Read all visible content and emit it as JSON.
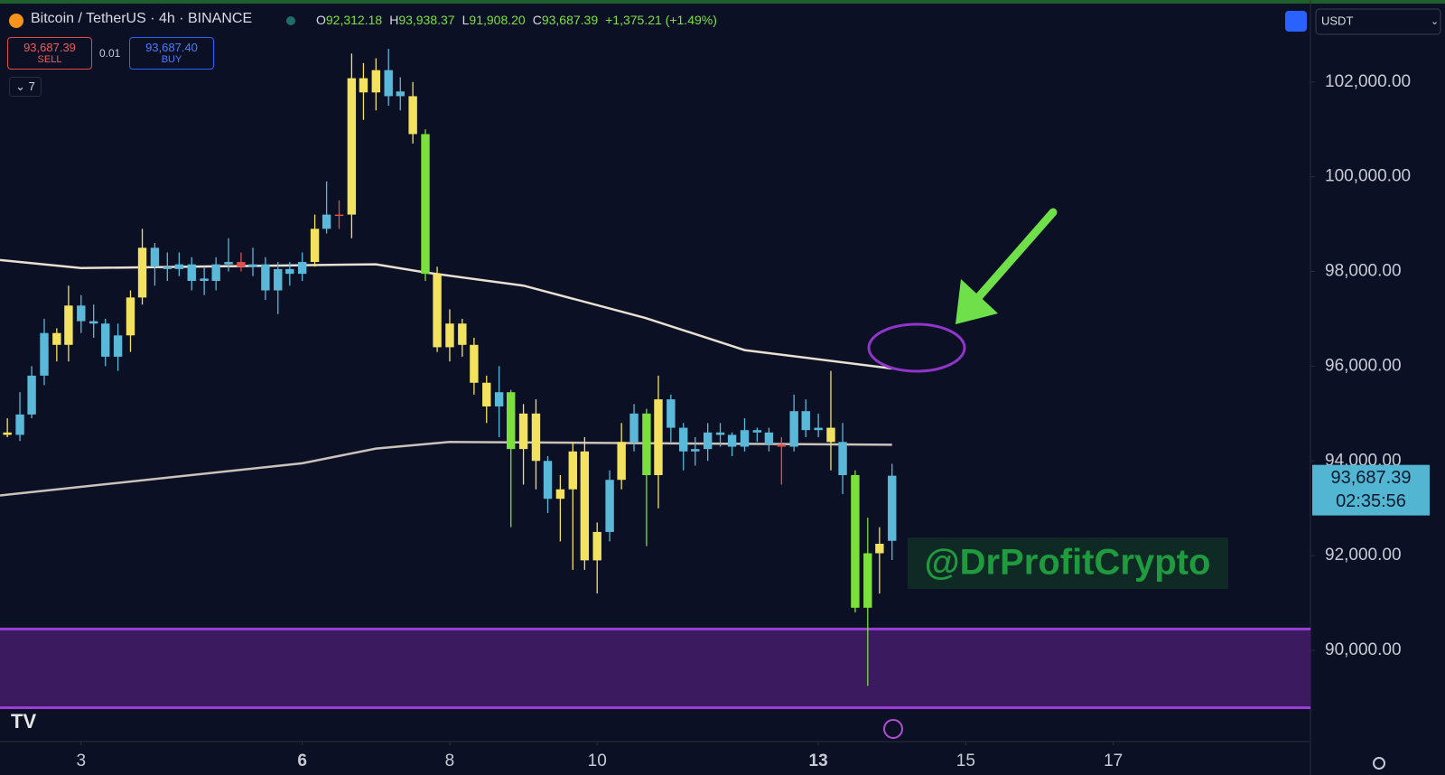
{
  "ui": {
    "header": {
      "symbol": "Bitcoin / TetherUS · 4h · BINANCE",
      "ohlc": [
        {
          "label": "O",
          "value": "92,312.18"
        },
        {
          "label": "H",
          "value": "93,938.37"
        },
        {
          "label": "L",
          "value": "91,908.20"
        },
        {
          "label": "C",
          "value": "93,687.39"
        }
      ],
      "change": "+1,375.21 (+1.49%)"
    },
    "sell": {
      "price": "93,687.39",
      "label": "SELL"
    },
    "spread": "0.01",
    "buy": {
      "price": "93,687.40",
      "label": "BUY"
    },
    "indicators": "7",
    "currency": "USDT",
    "price_badge": {
      "price": "93,687.39",
      "countdown": "02:35:56"
    }
  },
  "chart_data": {
    "type": "candlestick",
    "x": [
      2,
      2.17,
      2.33,
      2.5,
      2.67,
      2.83,
      3,
      3.17,
      3.33,
      3.5,
      3.67,
      3.83,
      4,
      4.17,
      4.33,
      4.5,
      4.67,
      4.83,
      5,
      5.17,
      5.33,
      5.5,
      5.67,
      5.83,
      6,
      6.17,
      6.33,
      6.5,
      6.67,
      6.83,
      7,
      7.17,
      7.33,
      7.5,
      7.67,
      7.83,
      8,
      8.17,
      8.33,
      8.5,
      8.67,
      8.83,
      9,
      9.17,
      9.33,
      9.5,
      9.67,
      9.83,
      10,
      10.17,
      10.33,
      10.5,
      10.67,
      10.83,
      11,
      11.17,
      11.33,
      11.5,
      11.67,
      11.83,
      12,
      12.17,
      12.33,
      12.5,
      12.67,
      12.83,
      13,
      13.17,
      13.33,
      13.5,
      13.67,
      13.83,
      14
    ],
    "open": [
      94550,
      94550,
      94980,
      95800,
      96700,
      96450,
      97280,
      96950,
      96900,
      96200,
      96650,
      97450,
      98500,
      98100,
      98050,
      98150,
      97800,
      97800,
      98150,
      98200,
      98100,
      98150,
      97600,
      98050,
      97950,
      98200,
      98900,
      99200,
      99200,
      102080,
      101780,
      102250,
      101700,
      101700,
      100900,
      97950,
      96400,
      96900,
      96450,
      95650,
      95150,
      95450,
      94250,
      95000,
      94000,
      93200,
      93400,
      94200,
      91900,
      92500,
      93600,
      94400,
      95000,
      93700,
      95300,
      94700,
      94200,
      94250,
      94600,
      94550,
      94300,
      94650,
      94600,
      94350,
      94300,
      95050,
      94650,
      94700,
      94400,
      93700,
      90900,
      92050,
      92312.18
    ],
    "high": [
      94900,
      95450,
      96000,
      97000,
      96800,
      97700,
      97500,
      97300,
      97000,
      96900,
      97600,
      98900,
      98600,
      98400,
      98400,
      98300,
      98100,
      98300,
      98700,
      98400,
      98500,
      98300,
      98200,
      98200,
      98400,
      99200,
      99900,
      99500,
      102600,
      102400,
      102500,
      102700,
      102100,
      102000,
      101000,
      98100,
      97200,
      97000,
      96600,
      95800,
      96000,
      95500,
      95200,
      95300,
      94100,
      93700,
      94400,
      94500,
      92700,
      93800,
      94800,
      95200,
      95100,
      95800,
      95400,
      94800,
      94500,
      94800,
      94800,
      94600,
      94900,
      94700,
      94700,
      94500,
      95400,
      95300,
      95000,
      95900,
      94800,
      93800,
      92800,
      92600,
      93938.37
    ],
    "low": [
      94500,
      94420,
      94900,
      95600,
      96100,
      96100,
      96700,
      96600,
      96000,
      95900,
      96300,
      97300,
      97700,
      97800,
      97900,
      97600,
      97500,
      97600,
      98000,
      98000,
      97900,
      97400,
      97100,
      97700,
      97800,
      98100,
      98800,
      98900,
      98700,
      101200,
      101400,
      101500,
      101400,
      100700,
      97800,
      96300,
      96100,
      96200,
      95400,
      94800,
      94500,
      92600,
      93500,
      93400,
      92900,
      92300,
      91700,
      91700,
      91200,
      92300,
      93400,
      94200,
      92200,
      93000,
      94400,
      93800,
      93900,
      94000,
      94300,
      94100,
      94200,
      94400,
      94200,
      93500,
      94200,
      94500,
      94500,
      93800,
      93300,
      90800,
      89250,
      91200,
      91908.2
    ],
    "close": [
      94600,
      94980,
      95800,
      96700,
      96450,
      97280,
      96950,
      96900,
      96200,
      96650,
      97450,
      98500,
      98100,
      98050,
      98150,
      97800,
      97850,
      98150,
      98200,
      98100,
      98150,
      97600,
      98050,
      97950,
      98200,
      98900,
      99200,
      99180,
      102080,
      101780,
      102250,
      101700,
      101800,
      100900,
      97950,
      96400,
      96900,
      96450,
      95650,
      95150,
      95450,
      94250,
      95000,
      94000,
      93200,
      93400,
      94200,
      91900,
      92500,
      93600,
      94400,
      95000,
      93700,
      95300,
      94700,
      94200,
      94250,
      94600,
      94550,
      94300,
      94650,
      94600,
      94350,
      94300,
      95050,
      94650,
      94700,
      94400,
      93700,
      90900,
      92050,
      92250,
      93687.39
    ],
    "colors": [
      "#f3e25f",
      "#5ab8d8",
      "#5ab8d8",
      "#5ab8d8",
      "#f3e25f",
      "#f3e25f",
      "#5ab8d8",
      "#5ab8d8",
      "#5ab8d8",
      "#5ab8d8",
      "#f3e25f",
      "#f3e25f",
      "#5ab8d8",
      "#5ab8d8",
      "#5ab8d8",
      "#5ab8d8",
      "#5ab8d8",
      "#5ab8d8",
      "#5ab8d8",
      "#e0504a",
      "#5ab8d8",
      "#5ab8d8",
      "#5ab8d8",
      "#5ab8d8",
      "#5ab8d8",
      "#f3e25f",
      "#5ab8d8",
      "#e0504a",
      "#f3e25f",
      "#f3e25f",
      "#f3e25f",
      "#5ab8d8",
      "#5ab8d8",
      "#f3e25f",
      "#7be03c",
      "#f3e25f",
      "#f3e25f",
      "#f3e25f",
      "#f3e25f",
      "#f3e25f",
      "#5ab8d8",
      "#7be03c",
      "#f3e25f",
      "#f3e25f",
      "#5ab8d8",
      "#f3e25f",
      "#f3e25f",
      "#f3e25f",
      "#f3e25f",
      "#5ab8d8",
      "#f3e25f",
      "#5ab8d8",
      "#7be03c",
      "#f3e25f",
      "#5ab8d8",
      "#5ab8d8",
      "#5ab8d8",
      "#5ab8d8",
      "#5ab8d8",
      "#5ab8d8",
      "#5ab8d8",
      "#5ab8d8",
      "#5ab8d8",
      "#e0504a",
      "#5ab8d8",
      "#5ab8d8",
      "#5ab8d8",
      "#f3e25f",
      "#5ab8d8",
      "#7be03c",
      "#7be03c",
      "#f3e25f",
      "#5ab8d8"
    ],
    "lines": [
      {
        "color": "#e9dfd2",
        "x": [
          1.9,
          3,
          7,
          7.67,
          9,
          10.65,
          12,
          14
        ],
        "values": [
          98240,
          98070,
          98150,
          97980,
          97700,
          97020,
          96340,
          95950
        ]
      },
      {
        "color": "#c9c3bc",
        "x": [
          1.9,
          6,
          7,
          8,
          14
        ],
        "values": [
          93270,
          93950,
          94260,
          94400,
          94340
        ]
      }
    ],
    "zones": [
      {
        "range": [
          88790,
          90450
        ],
        "color": "#3b1a5f",
        "border": "#9b3fd6"
      }
    ],
    "annotation": "@DrProfitCrypto",
    "xlim": [
      1.9,
      19.675
    ],
    "xticks": [
      3,
      6,
      8,
      10,
      13,
      15,
      17
    ],
    "xticks_bold": [
      6,
      13
    ],
    "ylim": [
      88074,
      103731
    ],
    "yticks": [
      {
        "value": 90000,
        "label": "90,000.00"
      },
      {
        "value": 92000,
        "label": "92,000.00"
      },
      {
        "value": 94000,
        "label": "94,000.00"
      },
      {
        "value": 96000,
        "label": "96,000.00"
      },
      {
        "value": 98000,
        "label": "98,000.00"
      },
      {
        "value": 100000,
        "label": "100,000.00"
      },
      {
        "value": 102000,
        "label": "102,000.00"
      }
    ],
    "grid": false
  }
}
